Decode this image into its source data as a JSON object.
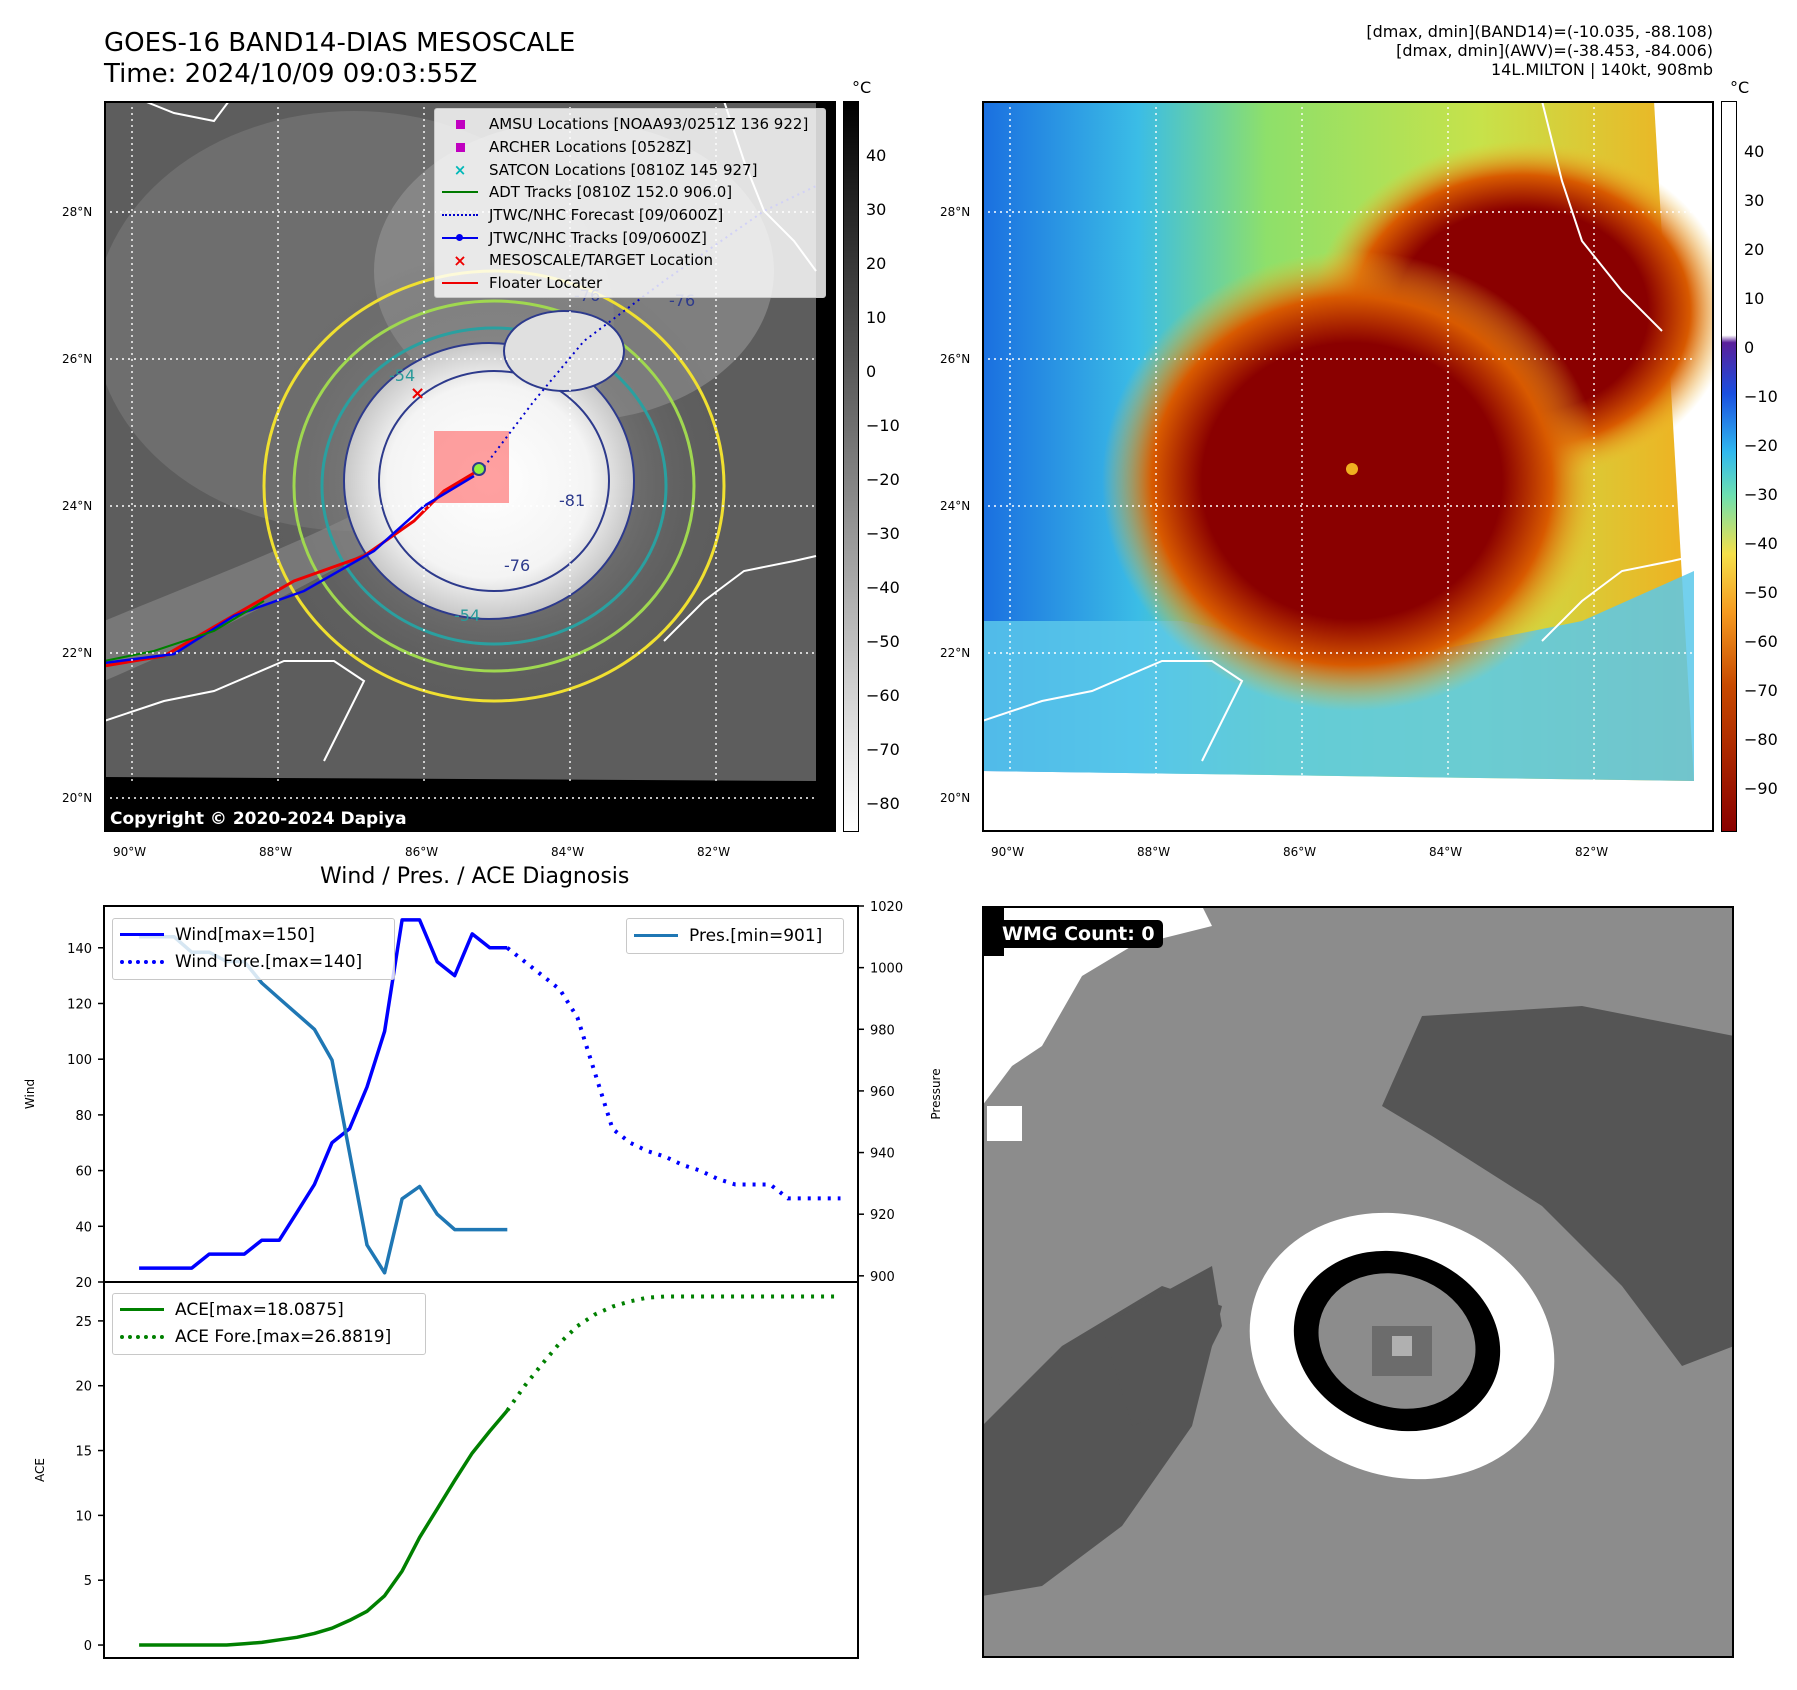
{
  "header": {
    "title_line1": "GOES-16 BAND14-DIAS MESOSCALE",
    "title_line2": "Time: 2024/10/09 09:03:55Z",
    "info_line1": "[dmax, dmin](BAND14)=(-10.035, -88.108)",
    "info_line2": "[dmax, dmin](AWV)=(-38.453, -84.006)",
    "info_line3": "14L.MILTON | 140kt, 908mb"
  },
  "map_axes": {
    "lat_labels": [
      "28°N",
      "26°N",
      "24°N",
      "22°N",
      "20°N"
    ],
    "lon_labels": [
      "90°W",
      "88°W",
      "86°W",
      "84°W",
      "82°W"
    ]
  },
  "ir_panel": {
    "copyright": "Copyright © 2020-2024 Dapiya",
    "colorbar_unit": "°C",
    "colorbar_ticks": [
      "40",
      "30",
      "20",
      "10",
      "0",
      "−10",
      "−20",
      "−30",
      "−40",
      "−50",
      "−60",
      "−70",
      "−80"
    ],
    "contour_labels": [
      "-54",
      "-76",
      "-81",
      "-76",
      "-76",
      "-54"
    ],
    "legend": [
      {
        "label": "AMSU Locations [NOAA93/0251Z 136 922]",
        "icon": "magenta-square",
        "color": "#c000c0"
      },
      {
        "label": "ARCHER Locations [0528Z]",
        "icon": "magenta-square",
        "color": "#c000c0"
      },
      {
        "label": "SATCON Locations [0810Z 145 927]",
        "icon": "cyan-x",
        "color": "#00b8b8"
      },
      {
        "label": "ADT Tracks [0810Z 152.0 906.0]",
        "icon": "green-line",
        "color": "#007a00"
      },
      {
        "label": "JTWC/NHC Forecast [09/0600Z]",
        "icon": "blue-dotted-line",
        "color": "#0000cc"
      },
      {
        "label": "JTWC/NHC Tracks [09/0600Z]",
        "icon": "blue-dot-line",
        "color": "#0000ee"
      },
      {
        "label": "MESOSCALE/TARGET Location",
        "icon": "red-x",
        "color": "#ee0000"
      },
      {
        "label": "Floater Locater",
        "icon": "red-line",
        "color": "#ee0000"
      }
    ]
  },
  "wv_panel": {
    "colorbar_unit": "°C",
    "colorbar_ticks": [
      "40",
      "30",
      "20",
      "10",
      "0",
      "−10",
      "−20",
      "−30",
      "−40",
      "−50",
      "−60",
      "−70",
      "−80",
      "−90"
    ]
  },
  "wmg_panel": {
    "badge": "WMG Count: 0"
  },
  "chart_data": [
    {
      "type": "line",
      "title": "Wind / Pres. / ACE Diagnosis",
      "ylabel": "Wind",
      "ylim": [
        20,
        155
      ],
      "yticks": [
        "140",
        "120",
        "100",
        "80",
        "60",
        "40",
        "20"
      ],
      "xlim": [
        -2,
        41
      ],
      "series": [
        {
          "name": "Wind[max=150]",
          "style": "solid",
          "color": "#0000ff",
          "x": [
            0,
            1,
            2,
            3,
            4,
            5,
            6,
            7,
            8,
            9,
            10,
            11,
            12,
            13,
            14,
            15,
            16,
            17,
            18,
            19,
            20,
            21
          ],
          "values": [
            25,
            25,
            25,
            25,
            30,
            30,
            30,
            35,
            35,
            45,
            55,
            70,
            75,
            90,
            110,
            150,
            150,
            135,
            130,
            145,
            140,
            140
          ]
        },
        {
          "name": "Wind Fore.[max=140]",
          "style": "dotted",
          "color": "#0000ff",
          "x": [
            21,
            22,
            23,
            24,
            25,
            26,
            27,
            28,
            29,
            30,
            31,
            32,
            33,
            34,
            35,
            36,
            37,
            38,
            39,
            40
          ],
          "values": [
            140,
            135,
            130,
            125,
            115,
            95,
            75,
            70,
            67,
            65,
            62,
            60,
            57,
            55,
            55,
            55,
            50,
            50,
            50,
            50
          ]
        }
      ],
      "secondary_axis": {
        "ylabel": "Pressure",
        "ylim": [
          898,
          1020
        ],
        "yticks": [
          "1020",
          "1000",
          "980",
          "960",
          "940",
          "920",
          "900"
        ],
        "series": [
          {
            "name": "Pres.[min=901]",
            "style": "solid",
            "color": "#1f77b4",
            "x": [
              0,
              1,
              2,
              3,
              4,
              5,
              6,
              7,
              8,
              9,
              10,
              11,
              12,
              13,
              14,
              15,
              16,
              17,
              18,
              19,
              20,
              21
            ],
            "values": [
              1010,
              1010,
              1010,
              1005,
              1005,
              1002,
              1002,
              995,
              990,
              985,
              980,
              970,
              940,
              910,
              901,
              925,
              929,
              920,
              915,
              915,
              915,
              915
            ]
          }
        ]
      }
    },
    {
      "type": "line",
      "ylabel": "ACE",
      "ylim": [
        -1,
        28
      ],
      "yticks": [
        "25",
        "20",
        "15",
        "10",
        "5",
        "0"
      ],
      "xlim": [
        -2,
        41
      ],
      "series": [
        {
          "name": "ACE[max=18.0875]",
          "style": "solid",
          "color": "#008000",
          "x": [
            0,
            1,
            2,
            3,
            4,
            5,
            6,
            7,
            8,
            9,
            10,
            11,
            12,
            13,
            14,
            15,
            16,
            17,
            18,
            19,
            20,
            21
          ],
          "values": [
            0,
            0,
            0,
            0,
            0,
            0,
            0.1,
            0.2,
            0.4,
            0.6,
            0.9,
            1.3,
            1.9,
            2.6,
            3.8,
            5.7,
            8.3,
            10.5,
            12.7,
            14.8,
            16.5,
            18.0875
          ]
        },
        {
          "name": "ACE Fore.[max=26.8819]",
          "style": "dotted",
          "color": "#008000",
          "x": [
            21,
            22,
            23,
            24,
            25,
            26,
            27,
            28,
            29,
            30,
            31,
            32,
            33,
            34,
            35,
            36,
            37,
            38,
            39,
            40
          ],
          "values": [
            18.0875,
            20,
            21.7,
            23.3,
            24.6,
            25.5,
            26.1,
            26.5,
            26.8,
            26.88,
            26.88,
            26.88,
            26.88,
            26.88,
            26.88,
            26.88,
            26.88,
            26.88,
            26.88,
            26.88
          ]
        }
      ]
    }
  ]
}
